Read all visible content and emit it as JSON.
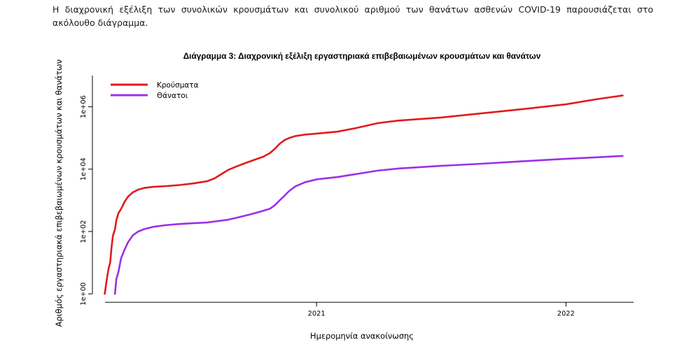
{
  "document": {
    "intro_text": "Η διαχρονική εξέλιξη των συνολικών κρουσμάτων και συνολικού αριθμού των θανάτων ασθενών COVID-19 παρουσιάζεται στο ακόλουθο διάγραμμα."
  },
  "chart_data": {
    "type": "line",
    "title": "Διάγραμμα 3: Διαχρονική εξέλιξη εργαστηριακά επιβεβαιωμένων κρουσμάτων και θανάτων",
    "xlabel": "Ημερομηνία ανακοίνωσης",
    "ylabel": "Αριθμός εργαστηριακά επιβεβαιωμένων κρουσμάτων και θανάτων",
    "y_scale": "log10",
    "ylim": [
      1,
      10000000
    ],
    "xlim": [
      "2020-02-08",
      "2022-04-10"
    ],
    "x_ticks": [
      {
        "label": "2021",
        "date": "2021-01-01"
      },
      {
        "label": "2022",
        "date": "2022-01-01"
      }
    ],
    "y_ticks": [
      {
        "label": "1e+00",
        "value": 1
      },
      {
        "label": "1e+02",
        "value": 100
      },
      {
        "label": "1e+04",
        "value": 10000
      },
      {
        "label": "1e+06",
        "value": 1000000
      }
    ],
    "legend_position": "top-left",
    "grid": false,
    "series": [
      {
        "name": "Κρούσματα",
        "color": "#e31a1c",
        "points": [
          [
            "2020-02-26",
            1
          ],
          [
            "2020-02-28",
            2
          ],
          [
            "2020-03-01",
            4
          ],
          [
            "2020-03-03",
            7
          ],
          [
            "2020-03-05",
            10
          ],
          [
            "2020-03-07",
            31
          ],
          [
            "2020-03-09",
            73
          ],
          [
            "2020-03-12",
            117
          ],
          [
            "2020-03-14",
            228
          ],
          [
            "2020-03-17",
            387
          ],
          [
            "2020-03-21",
            530
          ],
          [
            "2020-03-26",
            892
          ],
          [
            "2020-03-31",
            1300
          ],
          [
            "2020-04-07",
            1800
          ],
          [
            "2020-04-15",
            2200
          ],
          [
            "2020-04-24",
            2500
          ],
          [
            "2020-05-06",
            2700
          ],
          [
            "2020-05-25",
            2850
          ],
          [
            "2020-06-15",
            3100
          ],
          [
            "2020-07-05",
            3500
          ],
          [
            "2020-07-25",
            4100
          ],
          [
            "2020-08-05",
            5100
          ],
          [
            "2020-08-15",
            7000
          ],
          [
            "2020-08-25",
            9500
          ],
          [
            "2020-09-05",
            12000
          ],
          [
            "2020-09-20",
            16000
          ],
          [
            "2020-10-05",
            21000
          ],
          [
            "2020-10-15",
            25000
          ],
          [
            "2020-10-25",
            33000
          ],
          [
            "2020-11-01",
            45000
          ],
          [
            "2020-11-08",
            65000
          ],
          [
            "2020-11-15",
            85000
          ],
          [
            "2020-11-22",
            100000
          ],
          [
            "2020-12-01",
            115000
          ],
          [
            "2020-12-15",
            128000
          ],
          [
            "2021-01-01",
            138000
          ],
          [
            "2021-02-01",
            160000
          ],
          [
            "2021-03-01",
            210000
          ],
          [
            "2021-04-01",
            300000
          ],
          [
            "2021-05-01",
            360000
          ],
          [
            "2021-07-01",
            450000
          ],
          [
            "2021-09-01",
            620000
          ],
          [
            "2021-11-01",
            850000
          ],
          [
            "2022-01-01",
            1200000
          ],
          [
            "2022-02-15",
            1750000
          ],
          [
            "2022-03-25",
            2300000
          ]
        ]
      },
      {
        "name": "Θάνατοι",
        "color": "#9b30e8",
        "points": [
          [
            "2020-03-12",
            1
          ],
          [
            "2020-03-14",
            3
          ],
          [
            "2020-03-17",
            5
          ],
          [
            "2020-03-21",
            14
          ],
          [
            "2020-03-26",
            26
          ],
          [
            "2020-03-31",
            45
          ],
          [
            "2020-04-07",
            75
          ],
          [
            "2020-04-15",
            100
          ],
          [
            "2020-04-24",
            120
          ],
          [
            "2020-05-06",
            140
          ],
          [
            "2020-05-25",
            160
          ],
          [
            "2020-06-15",
            175
          ],
          [
            "2020-07-05",
            185
          ],
          [
            "2020-07-25",
            195
          ],
          [
            "2020-08-05",
            210
          ],
          [
            "2020-08-25",
            240
          ],
          [
            "2020-09-10",
            290
          ],
          [
            "2020-09-25",
            350
          ],
          [
            "2020-10-10",
            430
          ],
          [
            "2020-10-25",
            540
          ],
          [
            "2020-11-01",
            700
          ],
          [
            "2020-11-08",
            1000
          ],
          [
            "2020-11-15",
            1400
          ],
          [
            "2020-11-22",
            2000
          ],
          [
            "2020-12-01",
            2800
          ],
          [
            "2020-12-15",
            3800
          ],
          [
            "2021-01-01",
            4700
          ],
          [
            "2021-02-01",
            5600
          ],
          [
            "2021-03-01",
            7000
          ],
          [
            "2021-04-01",
            9000
          ],
          [
            "2021-05-01",
            10500
          ],
          [
            "2021-07-01",
            12700
          ],
          [
            "2021-09-01",
            15000
          ],
          [
            "2021-11-01",
            18000
          ],
          [
            "2022-01-01",
            21500
          ],
          [
            "2022-02-15",
            24000
          ],
          [
            "2022-03-25",
            26500
          ]
        ]
      }
    ]
  }
}
